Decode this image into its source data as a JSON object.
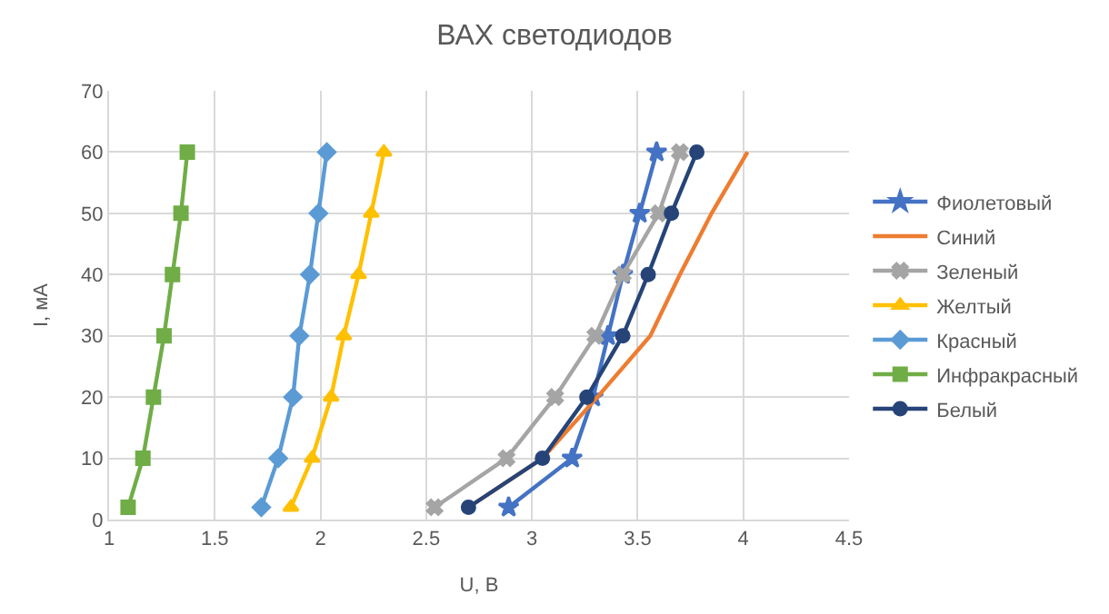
{
  "chart_data": {
    "type": "line",
    "title": "ВАХ светодиодов",
    "xlabel": "U, В",
    "ylabel": "I, мА",
    "xlim": [
      1,
      4.5
    ],
    "xticks": [
      1,
      1.5,
      2,
      2.5,
      3,
      3.5,
      4,
      4.5
    ],
    "ylim": [
      0,
      70
    ],
    "yticks": [
      0,
      10,
      20,
      30,
      40,
      50,
      60,
      70
    ],
    "grid": true,
    "legend": "right",
    "line_style": "solid",
    "series": [
      {
        "name": "Фиолетовый",
        "color": "#4472c4",
        "marker": "star",
        "x": [
          2.89,
          3.19,
          3.29,
          3.36,
          3.43,
          3.51,
          3.59
        ],
        "values": [
          2,
          10,
          20,
          30,
          40,
          50,
          60
        ]
      },
      {
        "name": "Синий",
        "color": "#ed7d31",
        "marker": "none",
        "x": [
          2.7,
          3.05,
          3.31,
          3.56,
          3.7,
          3.85,
          4.02
        ],
        "values": [
          2,
          10,
          20,
          30,
          40,
          50,
          60
        ]
      },
      {
        "name": "Зеленый",
        "color": "#a5a5a5",
        "marker": "cross",
        "x": [
          2.54,
          2.88,
          3.11,
          3.3,
          3.43,
          3.6,
          3.7
        ],
        "values": [
          2,
          10,
          20,
          30,
          40,
          50,
          60
        ]
      },
      {
        "name": "Желтый",
        "color": "#ffc000",
        "marker": "triangle",
        "x": [
          1.86,
          1.96,
          2.05,
          2.11,
          2.18,
          2.24,
          2.3
        ],
        "values": [
          2,
          10,
          20,
          30,
          40,
          50,
          60
        ]
      },
      {
        "name": "Красный",
        "color": "#5b9bd5",
        "marker": "diamond",
        "x": [
          1.72,
          1.8,
          1.87,
          1.9,
          1.95,
          1.99,
          2.03
        ],
        "values": [
          2,
          10,
          20,
          30,
          40,
          50,
          60
        ]
      },
      {
        "name": "Инфракрасный",
        "color": "#70ad47",
        "marker": "square",
        "x": [
          1.09,
          1.16,
          1.21,
          1.26,
          1.3,
          1.34,
          1.37
        ],
        "values": [
          2,
          10,
          20,
          30,
          40,
          50,
          60
        ]
      },
      {
        "name": "Белый",
        "color": "#264478",
        "marker": "circle",
        "x": [
          2.7,
          3.05,
          3.26,
          3.43,
          3.55,
          3.66,
          3.78
        ],
        "values": [
          2,
          10,
          20,
          30,
          40,
          50,
          60
        ]
      }
    ]
  }
}
